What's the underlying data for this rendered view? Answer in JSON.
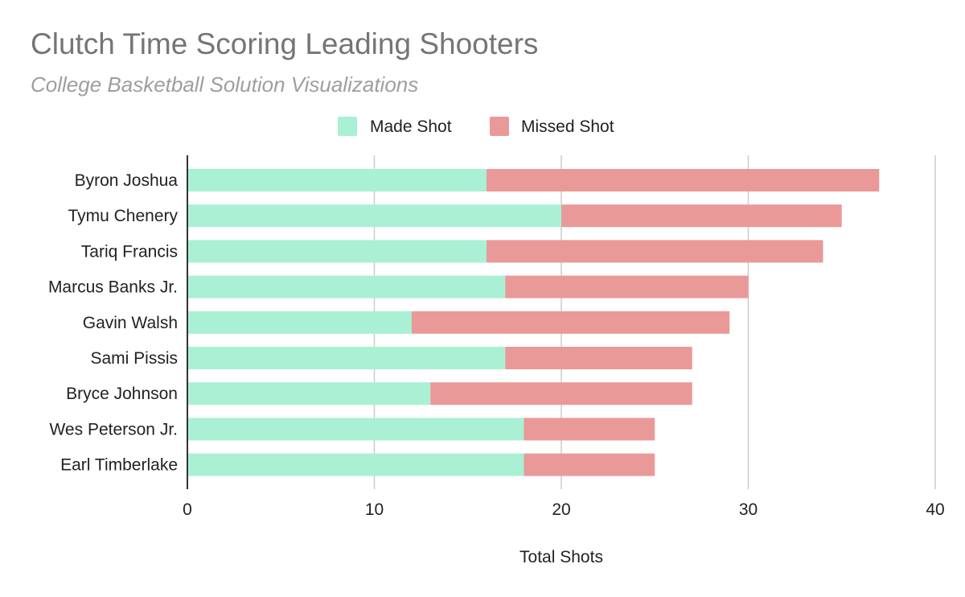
{
  "chart_data": {
    "type": "bar",
    "orientation": "horizontal",
    "stacked": true,
    "title": "Clutch Time Scoring Leading Shooters",
    "subtitle": "College Basketball Solution Visualizations",
    "xlabel": "Total Shots",
    "ylabel": "",
    "xlim": [
      0,
      40
    ],
    "xticks": [
      0,
      10,
      20,
      30,
      40
    ],
    "grid": true,
    "legend_position": "top",
    "categories": [
      "Byron Joshua",
      "Tymu Chenery",
      "Tariq Francis",
      "Marcus Banks Jr.",
      "Gavin Walsh",
      "Sami Pissis",
      "Bryce Johnson",
      "Wes Peterson Jr.",
      "Earl Timberlake"
    ],
    "series": [
      {
        "name": "Made Shot",
        "color": "#aaf0d4",
        "values": [
          16,
          20,
          16,
          17,
          12,
          17,
          13,
          18,
          18
        ]
      },
      {
        "name": "Missed Shot",
        "color": "#ea9999",
        "values": [
          21,
          15,
          18,
          13,
          17,
          10,
          14,
          7,
          7
        ]
      }
    ]
  }
}
